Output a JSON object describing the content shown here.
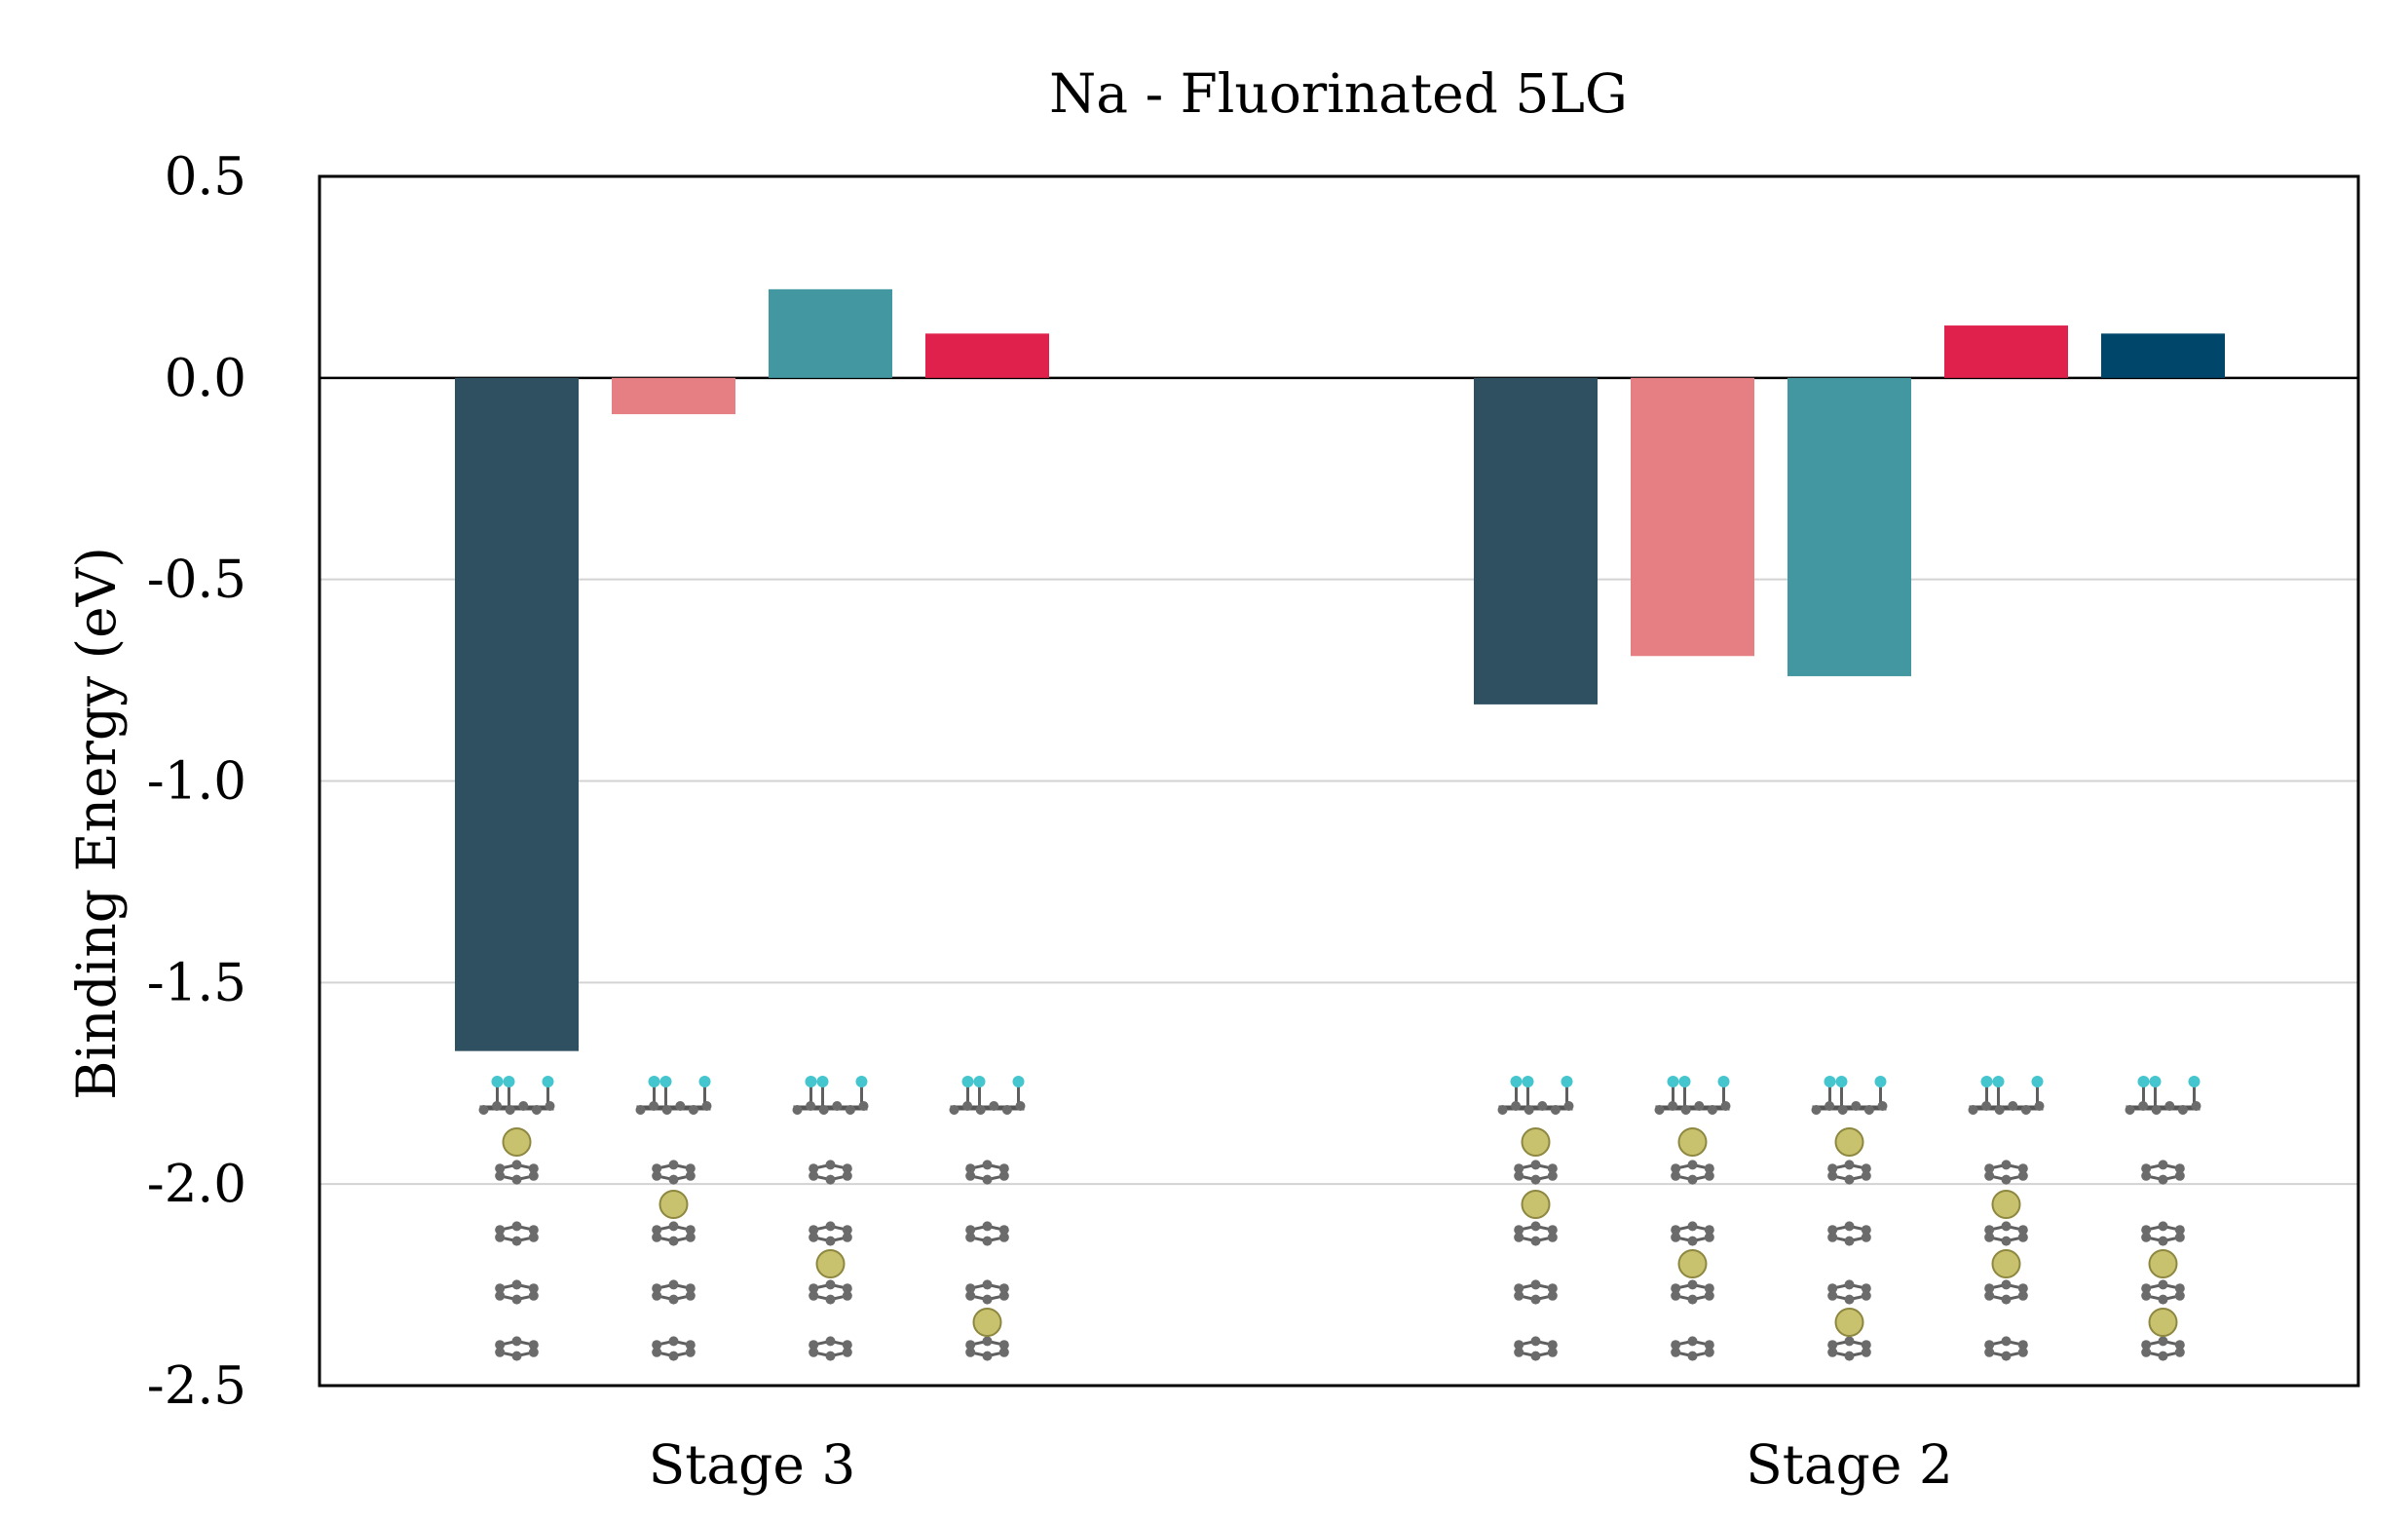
{
  "chart_data": {
    "type": "bar",
    "title": "Na - Fluorinated 5LG",
    "ylabel": "Binding Energy (eV)",
    "xlabel": "",
    "ylim": [
      -2.5,
      0.5
    ],
    "yticks": [
      "0.5",
      "0.0",
      "-0.5",
      "-1.0",
      "-1.5",
      "-2.0",
      "-2.5"
    ],
    "gridlines": [
      -0.5,
      -1.0,
      -1.5,
      -2.0
    ],
    "categories": [
      "Stage 3",
      "Stage 2"
    ],
    "groups": [
      {
        "category": "Stage 3",
        "bars": [
          {
            "value": -1.67,
            "color": "#2f5061",
            "na_layers": [
              1
            ]
          },
          {
            "value": -0.09,
            "color": "#e57f84",
            "na_layers": [
              2
            ]
          },
          {
            "value": 0.22,
            "color": "#4297a0",
            "na_layers": [
              3
            ]
          },
          {
            "value": 0.11,
            "color": "#df214b",
            "na_layers": [
              4
            ]
          }
        ]
      },
      {
        "category": "Stage 2",
        "bars": [
          {
            "value": -0.81,
            "color": "#2f5061",
            "na_layers": [
              1,
              2
            ]
          },
          {
            "value": -0.69,
            "color": "#e57f84",
            "na_layers": [
              1,
              3
            ]
          },
          {
            "value": -0.74,
            "color": "#4297a0",
            "na_layers": [
              1,
              4
            ]
          },
          {
            "value": 0.13,
            "color": "#df214b",
            "na_layers": [
              2,
              3
            ]
          },
          {
            "value": 0.11,
            "color": "#00456a",
            "na_layers": [
              3,
              4
            ]
          }
        ]
      }
    ]
  }
}
